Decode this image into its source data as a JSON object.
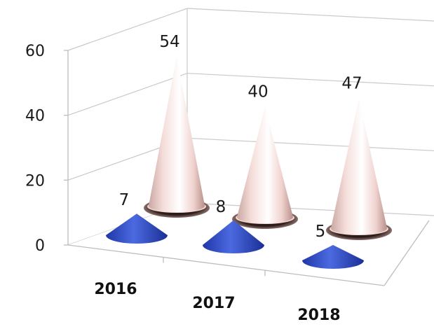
{
  "chart_data": {
    "type": "bar",
    "shape": "3d-cone",
    "categories": [
      "2016",
      "2017",
      "2018"
    ],
    "series": [
      {
        "values": [
          7,
          8,
          5
        ],
        "color": "#3350c8"
      },
      {
        "values": [
          54,
          40,
          47
        ],
        "color": "#f3d6d3"
      }
    ],
    "ylim": [
      0,
      60
    ],
    "yticks": [
      "0",
      "20",
      "40",
      "60"
    ],
    "grid": true,
    "legend": "none",
    "title": "",
    "xlabel": "",
    "ylabel": ""
  }
}
